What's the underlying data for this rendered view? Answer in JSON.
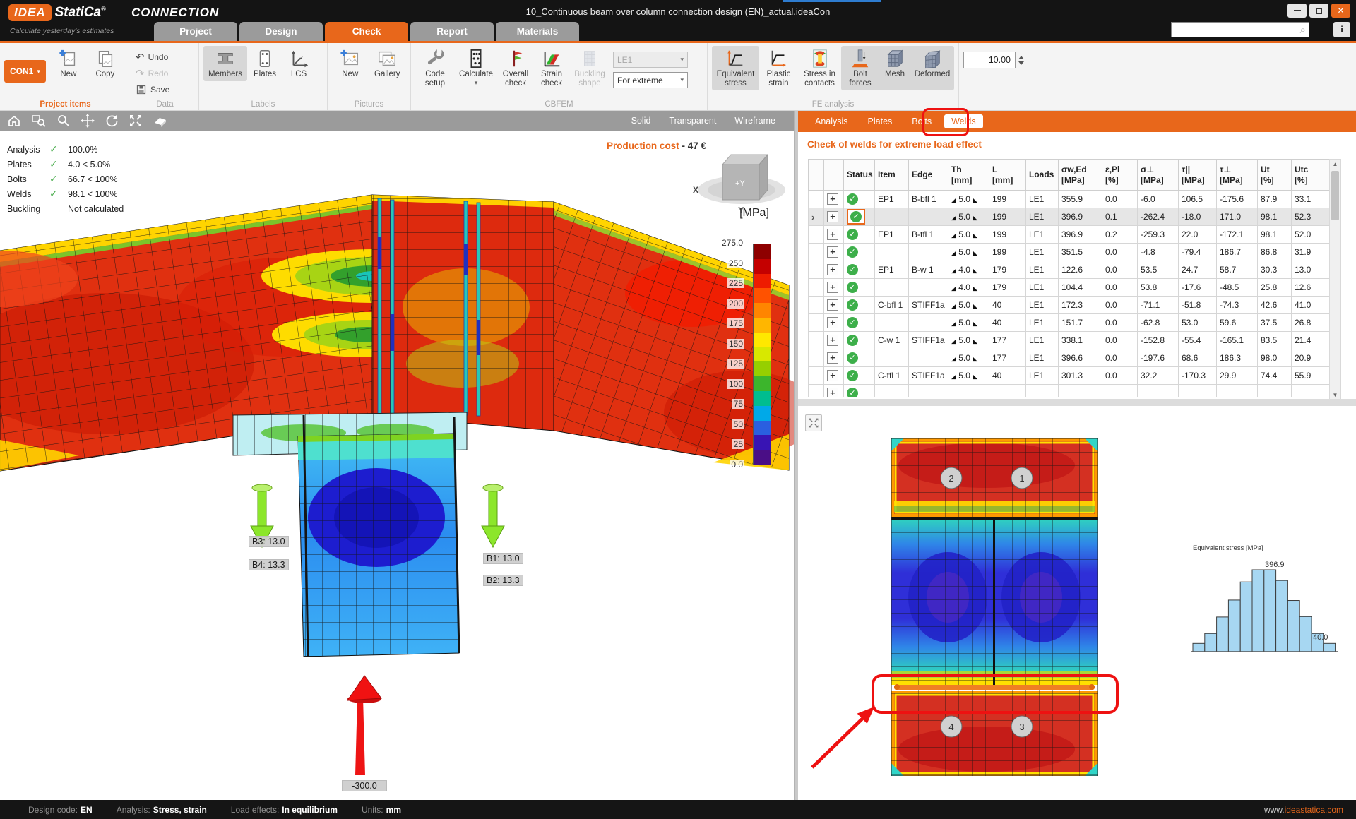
{
  "window": {
    "logo_primary": "IDEA",
    "logo_secondary": "StatiCa",
    "logo_reg": "®",
    "product": "CONNECTION",
    "tagline": "Calculate yesterday's estimates",
    "title": "10_Continuous beam over column connection design (EN)_actual.ideaCon",
    "search_placeholder": "",
    "info_glyph": "i",
    "close_glyph": "✕"
  },
  "icons": {
    "search": "⌕",
    "undo": "↶",
    "redo": "↷",
    "caret_down": "▾",
    "plus": "+",
    "check": "✓",
    "chevron": "›",
    "scroll_up": "▲",
    "scroll_down": "▼"
  },
  "main_tabs": [
    {
      "label": "Project",
      "active": false
    },
    {
      "label": "Design",
      "active": false
    },
    {
      "label": "Check",
      "active": true
    },
    {
      "label": "Report",
      "active": false
    },
    {
      "label": "Materials",
      "active": false
    }
  ],
  "ribbon": {
    "project_combo": "CON1",
    "buttons": {
      "new": "New",
      "copy": "Copy",
      "undo": "Undo",
      "redo": "Redo",
      "save": "Save",
      "members": "Members",
      "plates": "Plates",
      "lcs": "LCS",
      "pic_new": "New",
      "gallery": "Gallery",
      "code_setup": "Code setup",
      "calculate": "Calculate",
      "overall_check": "Overall check",
      "strain_check": "Strain check",
      "buckling_shape": "Buckling shape",
      "load_combo": "LE1",
      "extreme_combo": "For extreme",
      "equivalent_stress": "Equivalent stress",
      "plastic_strain": "Plastic strain",
      "stress_contacts": "Stress in contacts",
      "bolt_forces": "Bolt forces",
      "mesh": "Mesh",
      "deformed": "Deformed",
      "scale_value": "10.00"
    },
    "groups": [
      "Project items",
      "Data",
      "Labels",
      "Pictures",
      "CBFEM",
      "FE analysis"
    ]
  },
  "viewport": {
    "view_modes": [
      "Solid",
      "Transparent",
      "Wireframe"
    ],
    "summary": [
      {
        "label": "Analysis",
        "value": "100.0%",
        "check": true
      },
      {
        "label": "Plates",
        "value": "4.0 < 5.0%",
        "check": true
      },
      {
        "label": "Bolts",
        "value": "66.7 < 100%",
        "check": true
      },
      {
        "label": "Welds",
        "value": "98.1 < 100%",
        "check": true
      },
      {
        "label": "Buckling",
        "value": "Not calculated",
        "check": false
      }
    ],
    "production_cost_label": "Production cost",
    "production_cost_value": "- 47 €",
    "unit": "[MPa]",
    "scale_ticks": [
      "275.0",
      "250",
      "225",
      "200",
      "175",
      "150",
      "125",
      "100",
      "75",
      "50",
      "25",
      "0.0"
    ],
    "scale_colors": [
      "#8e0000",
      "#c40000",
      "#ee1c00",
      "#ff5200",
      "#ff8500",
      "#ffb600",
      "#ffe800",
      "#d8e800",
      "#96cf00",
      "#3cb52c",
      "#00bd8f",
      "#00a9e8",
      "#2a5fe0",
      "#3814b4",
      "#4a0e86"
    ],
    "annotations": {
      "b3": "B3: 13.0",
      "b4": "B4: 13.3",
      "b1": "B1: 13.0",
      "b2": "B2: 13.3",
      "load": "-300.0"
    },
    "nav_cube": {
      "x": "X",
      "y": "Y",
      "front": "+Y"
    }
  },
  "right_panel": {
    "tabs": [
      {
        "label": "Analysis",
        "active": false
      },
      {
        "label": "Plates",
        "active": false
      },
      {
        "label": "Bolts",
        "active": false
      },
      {
        "label": "Welds",
        "active": true
      }
    ],
    "heading": "Check of welds for extreme load effect",
    "table": {
      "weld_sym_pre": "◢",
      "weld_sym_post": "◣",
      "headers": [
        {
          "t": "",
          "u": ""
        },
        {
          "t": "",
          "u": ""
        },
        {
          "t": "Status",
          "u": ""
        },
        {
          "t": "Item",
          "u": ""
        },
        {
          "t": "Edge",
          "u": ""
        },
        {
          "t": "Th",
          "u": "[mm]"
        },
        {
          "t": "L",
          "u": "[mm]"
        },
        {
          "t": "Loads",
          "u": ""
        },
        {
          "t": "σw,Ed",
          "u": "[MPa]"
        },
        {
          "t": "ε,Pl",
          "u": "[%]"
        },
        {
          "t": "σ⊥",
          "u": "[MPa]"
        },
        {
          "t": "τ||",
          "u": "[MPa]"
        },
        {
          "t": "τ⊥",
          "u": "[MPa]"
        },
        {
          "t": "Ut",
          "u": "[%]"
        },
        {
          "t": "Utc",
          "u": "[%]"
        }
      ],
      "rows": [
        {
          "selected": false,
          "item": "EP1",
          "edge": "B-bfl 1",
          "th": "5.0",
          "len": "199",
          "loads": "LE1",
          "sw_ed": "355.9",
          "e_pl": "0.0",
          "sigma_perp": "-6.0",
          "tau_par": "106.5",
          "tau_perp": "-175.6",
          "ut": "87.9",
          "utc": "33.1"
        },
        {
          "selected": true,
          "item": "",
          "edge": "",
          "th": "5.0",
          "len": "199",
          "loads": "LE1",
          "sw_ed": "396.9",
          "e_pl": "0.1",
          "sigma_perp": "-262.4",
          "tau_par": "-18.0",
          "tau_perp": "171.0",
          "ut": "98.1",
          "utc": "52.3"
        },
        {
          "selected": false,
          "item": "EP1",
          "edge": "B-tfl 1",
          "th": "5.0",
          "len": "199",
          "loads": "LE1",
          "sw_ed": "396.9",
          "e_pl": "0.2",
          "sigma_perp": "-259.3",
          "tau_par": "22.0",
          "tau_perp": "-172.1",
          "ut": "98.1",
          "utc": "52.0"
        },
        {
          "selected": false,
          "item": "",
          "edge": "",
          "th": "5.0",
          "len": "199",
          "loads": "LE1",
          "sw_ed": "351.5",
          "e_pl": "0.0",
          "sigma_perp": "-4.8",
          "tau_par": "-79.4",
          "tau_perp": "186.7",
          "ut": "86.8",
          "utc": "31.9"
        },
        {
          "selected": false,
          "item": "EP1",
          "edge": "B-w 1",
          "th": "4.0",
          "len": "179",
          "loads": "LE1",
          "sw_ed": "122.6",
          "e_pl": "0.0",
          "sigma_perp": "53.5",
          "tau_par": "24.7",
          "tau_perp": "58.7",
          "ut": "30.3",
          "utc": "13.0"
        },
        {
          "selected": false,
          "item": "",
          "edge": "",
          "th": "4.0",
          "len": "179",
          "loads": "LE1",
          "sw_ed": "104.4",
          "e_pl": "0.0",
          "sigma_perp": "53.8",
          "tau_par": "-17.6",
          "tau_perp": "-48.5",
          "ut": "25.8",
          "utc": "12.6"
        },
        {
          "selected": false,
          "item": "C-bfl 1",
          "edge": "STIFF1a",
          "th": "5.0",
          "len": "40",
          "loads": "LE1",
          "sw_ed": "172.3",
          "e_pl": "0.0",
          "sigma_perp": "-71.1",
          "tau_par": "-51.8",
          "tau_perp": "-74.3",
          "ut": "42.6",
          "utc": "41.0"
        },
        {
          "selected": false,
          "item": "",
          "edge": "",
          "th": "5.0",
          "len": "40",
          "loads": "LE1",
          "sw_ed": "151.7",
          "e_pl": "0.0",
          "sigma_perp": "-62.8",
          "tau_par": "53.0",
          "tau_perp": "59.6",
          "ut": "37.5",
          "utc": "26.8"
        },
        {
          "selected": false,
          "item": "C-w 1",
          "edge": "STIFF1a",
          "th": "5.0",
          "len": "177",
          "loads": "LE1",
          "sw_ed": "338.1",
          "e_pl": "0.0",
          "sigma_perp": "-152.8",
          "tau_par": "-55.4",
          "tau_perp": "-165.1",
          "ut": "83.5",
          "utc": "21.4"
        },
        {
          "selected": false,
          "item": "",
          "edge": "",
          "th": "5.0",
          "len": "177",
          "loads": "LE1",
          "sw_ed": "396.6",
          "e_pl": "0.0",
          "sigma_perp": "-197.6",
          "tau_par": "68.6",
          "tau_perp": "186.3",
          "ut": "98.0",
          "utc": "20.9"
        },
        {
          "selected": false,
          "item": "C-tfl 1",
          "edge": "STIFF1a",
          "th": "5.0",
          "len": "40",
          "loads": "LE1",
          "sw_ed": "301.3",
          "e_pl": "0.0",
          "sigma_perp": "32.2",
          "tau_par": "-170.3",
          "tau_perp": "29.9",
          "ut": "74.4",
          "utc": "55.9"
        },
        {
          "selected": false,
          "partial": true,
          "item": "",
          "edge": "",
          "th": "",
          "len": "",
          "loads": "",
          "sw_ed": "",
          "e_pl": "",
          "sigma_perp": "",
          "tau_par": "",
          "tau_perp": "",
          "ut": "",
          "utc": ""
        }
      ]
    },
    "detail": {
      "bolts": [
        "1",
        "2",
        "3",
        "4"
      ]
    }
  },
  "chart_data": {
    "type": "bar",
    "title": "Equivalent stress [MPa]",
    "values": [
      40,
      88,
      168,
      250,
      338,
      396.9,
      396.9,
      345,
      248,
      170,
      88,
      40
    ],
    "ylim": [
      0,
      396.9
    ],
    "peak_label": "396.9",
    "min_label": "40.0",
    "bar_color": "#a7d7f2",
    "legend": "none",
    "xlabel": "",
    "ylabel": ""
  },
  "statusbar": {
    "design_code_label": "Design code:",
    "design_code": "EN",
    "analysis_label": "Analysis:",
    "analysis": "Stress, strain",
    "load_label": "Load effects:",
    "load": "In equilibrium",
    "units_label": "Units:",
    "units": "mm",
    "website_www": "www.",
    "website_domain": "ideastatica.com"
  }
}
